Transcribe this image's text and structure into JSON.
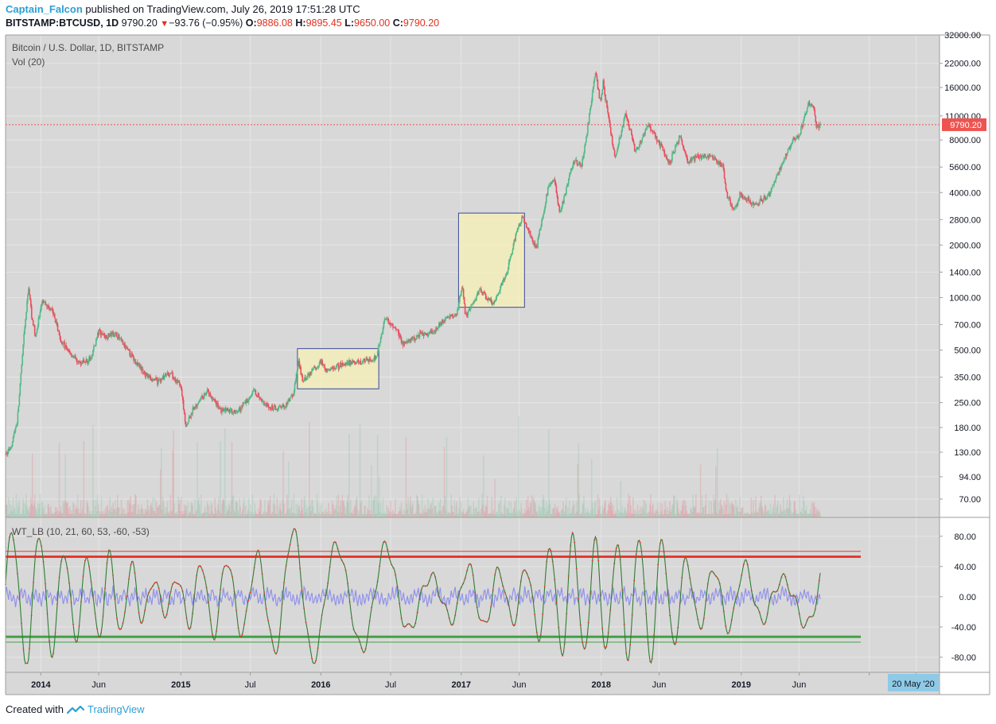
{
  "header": {
    "author": "Captain_Falcon",
    "published": "published on TradingView.com, July 26, 2019 17:51:28 UTC",
    "symbol": "BITSTAMP:BTCUSD, 1D",
    "last": "9790.20",
    "change_arrow": "▼",
    "change": "−93.76 (−0.95%)",
    "o_label": "O:",
    "o_value": "9886.08",
    "h_label": "H:",
    "h_value": "9895.45",
    "l_label": "L:",
    "l_value": "9650.00",
    "c_label": "C:",
    "c_value": "9790.20"
  },
  "footer": {
    "created_with": "Created with",
    "brand": "TradingView"
  },
  "colors": {
    "background": "#d8d8d8",
    "up": "#53b987",
    "down": "#eb4d5c",
    "red_line": "#e53935",
    "green_line": "#43a047",
    "wt_dots": "#e53935",
    "wt_line": "#2e7d32",
    "vwap": "#7b7bf0",
    "box_fill": "#f3eebb",
    "box_stroke": "#3b4a9c",
    "price_label": "#ef5350",
    "date_label": "#8ecae6"
  },
  "chart_data": [
    {
      "type": "candlestick",
      "title": "Bitcoin / U.S. Dollar, 1D, BITSTAMP",
      "subtitle": "Vol (20)",
      "scale": "log",
      "ylim": [
        55,
        32000
      ],
      "y_ticks": [
        "32000.00",
        "22000.00",
        "16000.00",
        "11000.00",
        "8000.00",
        "5600.00",
        "4000.00",
        "2800.00",
        "2000.00",
        "1400.00",
        "1000.00",
        "700.00",
        "500.00",
        "350.00",
        "250.00",
        "180.00",
        "130.00",
        "94.00",
        "70.00"
      ],
      "y_tick_values": [
        32000,
        22000,
        16000,
        11000,
        8000,
        5600,
        4000,
        2800,
        2000,
        1400,
        1000,
        700,
        500,
        350,
        250,
        180,
        130,
        94,
        70
      ],
      "last_price": 9790.2,
      "last_price_label": "9790.20",
      "x_ticks": [
        "2014",
        "Jun",
        "2015",
        "Jul",
        "2016",
        "Jul",
        "2017",
        "Jun",
        "2018",
        "Jun",
        "2019",
        "Jun"
      ],
      "x_range": [
        "2013-10-01",
        "2020-06-01"
      ],
      "date_marker": "20 May '20",
      "key_points": [
        [
          "2013-10-01",
          125
        ],
        [
          "2013-10-15",
          140
        ],
        [
          "2013-11-01",
          200
        ],
        [
          "2013-11-18",
          600
        ],
        [
          "2013-11-30",
          1150
        ],
        [
          "2013-12-08",
          800
        ],
        [
          "2013-12-18",
          600
        ],
        [
          "2014-01-05",
          950
        ],
        [
          "2014-02-01",
          830
        ],
        [
          "2014-02-25",
          550
        ],
        [
          "2014-04-10",
          420
        ],
        [
          "2014-05-10",
          440
        ],
        [
          "2014-06-01",
          640
        ],
        [
          "2014-06-20",
          600
        ],
        [
          "2014-07-15",
          620
        ],
        [
          "2014-08-20",
          480
        ],
        [
          "2014-10-01",
          360
        ],
        [
          "2014-11-01",
          330
        ],
        [
          "2014-12-01",
          370
        ],
        [
          "2014-12-31",
          315
        ],
        [
          "2015-01-14",
          185
        ],
        [
          "2015-02-01",
          225
        ],
        [
          "2015-03-10",
          290
        ],
        [
          "2015-04-15",
          225
        ],
        [
          "2015-06-01",
          225
        ],
        [
          "2015-07-10",
          290
        ],
        [
          "2015-08-20",
          230
        ],
        [
          "2015-09-30",
          240
        ],
        [
          "2015-10-20",
          275
        ],
        [
          "2015-11-04",
          420
        ],
        [
          "2015-11-15",
          330
        ],
        [
          "2016-01-01",
          430
        ],
        [
          "2016-01-15",
          380
        ],
        [
          "2016-03-01",
          420
        ],
        [
          "2016-04-15",
          430
        ],
        [
          "2016-05-25",
          450
        ],
        [
          "2016-06-16",
          760
        ],
        [
          "2016-07-15",
          660
        ],
        [
          "2016-08-02",
          545
        ],
        [
          "2016-09-15",
          610
        ],
        [
          "2016-10-20",
          640
        ],
        [
          "2016-11-20",
          740
        ],
        [
          "2016-12-20",
          820
        ],
        [
          "2017-01-04",
          1140
        ],
        [
          "2017-01-12",
          780
        ],
        [
          "2017-02-20",
          1110
        ],
        [
          "2017-03-25",
          910
        ],
        [
          "2017-05-01",
          1400
        ],
        [
          "2017-05-25",
          2400
        ],
        [
          "2017-06-10",
          2900
        ],
        [
          "2017-07-16",
          1900
        ],
        [
          "2017-08-15",
          4200
        ],
        [
          "2017-09-01",
          4800
        ],
        [
          "2017-09-15",
          3000
        ],
        [
          "2017-10-20",
          6000
        ],
        [
          "2017-11-12",
          5800
        ],
        [
          "2017-11-28",
          9900
        ],
        [
          "2017-12-17",
          19600
        ],
        [
          "2017-12-30",
          13000
        ],
        [
          "2018-01-06",
          17000
        ],
        [
          "2018-02-06",
          6200
        ],
        [
          "2018-03-05",
          11500
        ],
        [
          "2018-04-01",
          6800
        ],
        [
          "2018-05-05",
          9900
        ],
        [
          "2018-06-28",
          5900
        ],
        [
          "2018-07-25",
          8400
        ],
        [
          "2018-08-14",
          6000
        ],
        [
          "2018-09-15",
          6500
        ],
        [
          "2018-10-20",
          6400
        ],
        [
          "2018-11-14",
          5600
        ],
        [
          "2018-11-25",
          3800
        ],
        [
          "2018-12-15",
          3200
        ],
        [
          "2018-12-28",
          3900
        ],
        [
          "2019-02-07",
          3400
        ],
        [
          "2019-03-15",
          3900
        ],
        [
          "2019-04-02",
          4900
        ],
        [
          "2019-05-15",
          8000
        ],
        [
          "2019-06-01",
          8500
        ],
        [
          "2019-06-26",
          13000
        ],
        [
          "2019-07-10",
          12100
        ],
        [
          "2019-07-17",
          9400
        ],
        [
          "2019-07-26",
          9790
        ]
      ],
      "highlight_boxes": [
        {
          "from": "2015-11-01",
          "to": "2016-05-31",
          "low": 300,
          "high": 510
        },
        {
          "from": "2016-12-25",
          "to": "2017-06-15",
          "low": 880,
          "high": 3050
        }
      ]
    },
    {
      "type": "oscillator",
      "title": "WT_LB (10, 21, 60, 53, -60, -53)",
      "ylim": [
        -100,
        105
      ],
      "y_ticks": [
        "80.00",
        "40.00",
        "0.00",
        "-40.00",
        "-80.00"
      ],
      "y_tick_values": [
        80,
        40,
        0,
        -40,
        -80
      ],
      "levels": {
        "ob1": 60,
        "ob2": 53,
        "os1": -53,
        "os2": -60
      }
    }
  ]
}
